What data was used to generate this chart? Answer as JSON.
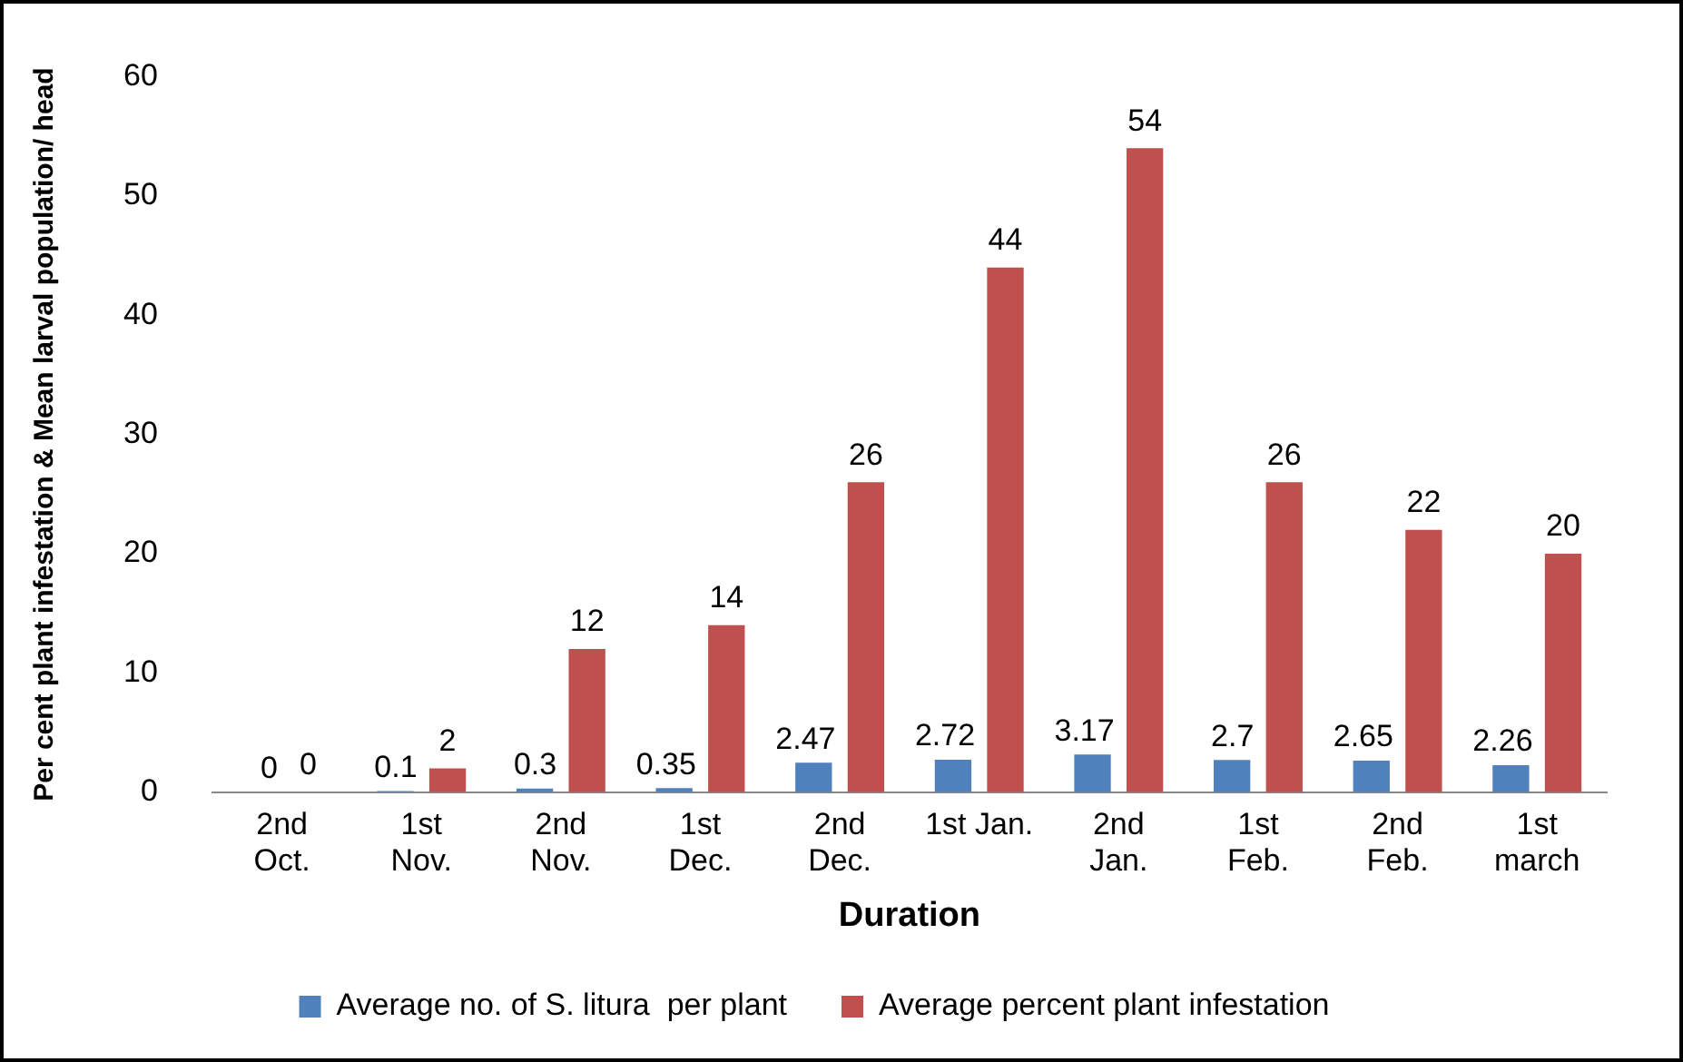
{
  "chart_data": {
    "type": "bar",
    "xlabel": "Duration",
    "ylabel": "Per cent plant infestation & Mean larval population/ head",
    "categories": [
      "2nd\nOct.",
      "1st\nNov.",
      "2nd\nNov.",
      "1st\nDec.",
      "2nd\nDec.",
      "1st Jan.",
      "2nd\nJan.",
      "1st\nFeb.",
      "2nd\nFeb.",
      "1st\nmarch"
    ],
    "series": [
      {
        "name": "Average no. of S. litura  per plant",
        "color": "#4f81bd",
        "values": [
          0,
          0.1,
          0.3,
          0.35,
          2.47,
          2.72,
          3.17,
          2.7,
          2.65,
          2.26
        ]
      },
      {
        "name": "Average percent plant infestation",
        "color": "#c0504d",
        "values": [
          0,
          2,
          12,
          14,
          26,
          44,
          54,
          26,
          22,
          20
        ]
      }
    ],
    "ylim": [
      0,
      60
    ],
    "yticks": [
      0,
      10,
      20,
      30,
      40,
      50,
      60
    ],
    "grid": false,
    "legend": "bottom",
    "data_labels": true
  }
}
